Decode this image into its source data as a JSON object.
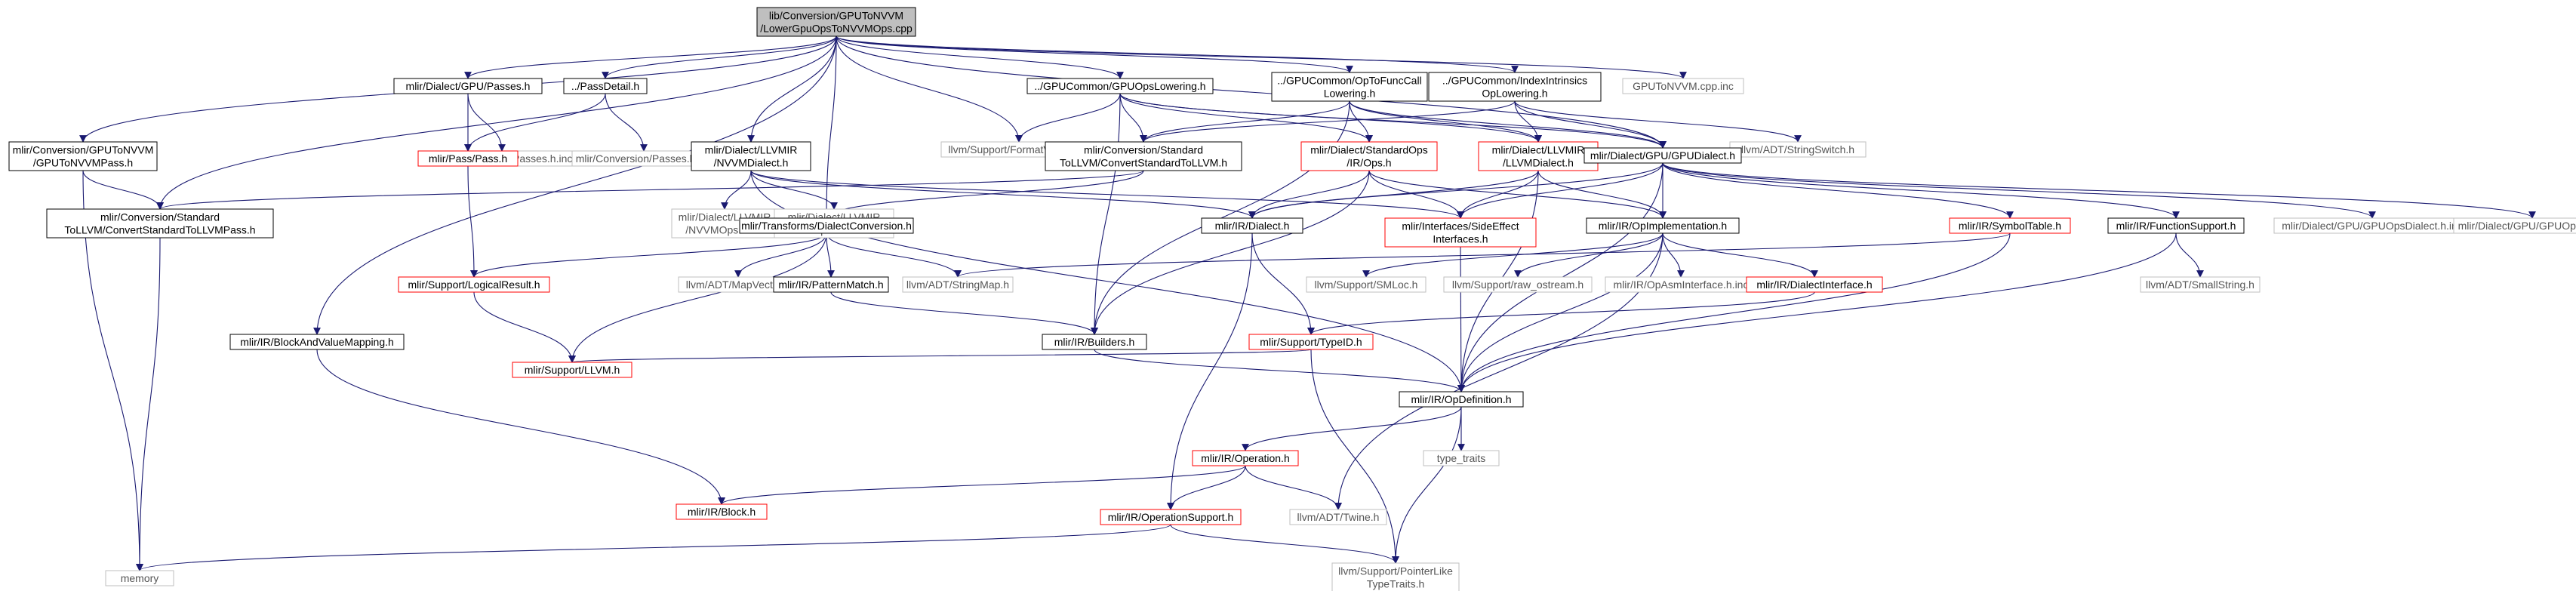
{
  "nodes": [
    {
      "id": "root",
      "lines": [
        "lib/Conversion/GPUToNVVM",
        "/LowerGpuOpsToNVVMOps.cpp"
      ],
      "style": "root"
    },
    {
      "id": "gpuToNvvmPass",
      "lines": [
        "mlir/Conversion/GPUToNVVM",
        "/GPUToNVVMPass.h"
      ],
      "style": "black"
    },
    {
      "id": "convStdToLLVMPass",
      "lines": [
        "mlir/Conversion/Standard",
        "ToLLVM/ConvertStandardToLLVMPass.h"
      ],
      "style": "black"
    },
    {
      "id": "memory",
      "lines": [
        "memory"
      ],
      "style": "gray"
    },
    {
      "id": "gpuPasses",
      "lines": [
        "mlir/Dialect/GPU/Passes.h"
      ],
      "style": "black"
    },
    {
      "id": "gpuPassesInc",
      "lines": [
        "mlir/Dialect/GPU/Passes.h.inc"
      ],
      "style": "gray"
    },
    {
      "id": "passDetail",
      "lines": [
        "../PassDetail.h"
      ],
      "style": "black"
    },
    {
      "id": "passPass",
      "lines": [
        "mlir/Pass/Pass.h"
      ],
      "style": "red"
    },
    {
      "id": "convPassesInc",
      "lines": [
        "mlir/Conversion/Passes.h.inc"
      ],
      "style": "gray"
    },
    {
      "id": "nvvmDialect",
      "lines": [
        "mlir/Dialect/LLVMIR",
        "/NVVMDialect.h"
      ],
      "style": "black"
    },
    {
      "id": "nvvmOpsInc",
      "lines": [
        "mlir/Dialect/LLVMIR",
        "/NVVMOps.h.inc"
      ],
      "style": "gray"
    },
    {
      "id": "nvvmOpsDialectInc",
      "lines": [
        "mlir/Dialect/LLVMIR",
        "/NVVMOpsDialect.h.inc"
      ],
      "style": "gray"
    },
    {
      "id": "blockAndValueMapping",
      "lines": [
        "mlir/IR/BlockAndValueMapping.h"
      ],
      "style": "black"
    },
    {
      "id": "dialectConversion",
      "lines": [
        "mlir/Transforms/DialectConversion.h"
      ],
      "style": "black"
    },
    {
      "id": "logicalResult",
      "lines": [
        "mlir/Support/LogicalResult.h"
      ],
      "style": "red"
    },
    {
      "id": "mapVector",
      "lines": [
        "llvm/ADT/MapVector.h"
      ],
      "style": "gray"
    },
    {
      "id": "patternMatch",
      "lines": [
        "mlir/IR/PatternMatch.h"
      ],
      "style": "black"
    },
    {
      "id": "stringMap",
      "lines": [
        "llvm/ADT/StringMap.h"
      ],
      "style": "gray"
    },
    {
      "id": "supportLLVM",
      "lines": [
        "mlir/Support/LLVM.h"
      ],
      "style": "red"
    },
    {
      "id": "block",
      "lines": [
        "mlir/IR/Block.h"
      ],
      "style": "red"
    },
    {
      "id": "gpuOpsLowering",
      "lines": [
        "../GPUCommon/GPUOpsLowering.h"
      ],
      "style": "black"
    },
    {
      "id": "formatVariadic",
      "lines": [
        "llvm/Support/FormatVariadic.h"
      ],
      "style": "gray"
    },
    {
      "id": "convStdToLLVM",
      "lines": [
        "mlir/Conversion/Standard",
        "ToLLVM/ConvertStandardToLLVM.h"
      ],
      "style": "black"
    },
    {
      "id": "builders",
      "lines": [
        "mlir/IR/Builders.h"
      ],
      "style": "black"
    },
    {
      "id": "opToFuncCall",
      "lines": [
        "../GPUCommon/OpToFuncCall",
        "Lowering.h"
      ],
      "style": "black"
    },
    {
      "id": "stdOps",
      "lines": [
        "mlir/Dialect/StandardOps",
        "/IR/Ops.h"
      ],
      "style": "red"
    },
    {
      "id": "indexIntrinsics",
      "lines": [
        "../GPUCommon/IndexIntrinsics",
        "OpLowering.h"
      ],
      "style": "black"
    },
    {
      "id": "llvmDialect",
      "lines": [
        "mlir/Dialect/LLVMIR",
        "/LLVMDialect.h"
      ],
      "style": "red"
    },
    {
      "id": "gpuToNvvmInc",
      "lines": [
        "GPUToNVVM.cpp.inc"
      ],
      "style": "gray"
    },
    {
      "id": "stringSwitch",
      "lines": [
        "llvm/ADT/StringSwitch.h"
      ],
      "style": "gray"
    },
    {
      "id": "gpuDialect",
      "lines": [
        "mlir/Dialect/GPU/GPUDialect.h"
      ],
      "style": "black"
    },
    {
      "id": "irDialect",
      "lines": [
        "mlir/IR/Dialect.h"
      ],
      "style": "black"
    },
    {
      "id": "sideEffect",
      "lines": [
        "mlir/Interfaces/SideEffect",
        "Interfaces.h"
      ],
      "style": "red"
    },
    {
      "id": "opImplementation",
      "lines": [
        "mlir/IR/OpImplementation.h"
      ],
      "style": "black"
    },
    {
      "id": "symbolTable",
      "lines": [
        "mlir/IR/SymbolTable.h"
      ],
      "style": "red"
    },
    {
      "id": "functionSupport",
      "lines": [
        "mlir/IR/FunctionSupport.h"
      ],
      "style": "black"
    },
    {
      "id": "gpuOpsDialectInc",
      "lines": [
        "mlir/Dialect/GPU/GPUOpsDialect.h.inc"
      ],
      "style": "gray"
    },
    {
      "id": "gpuOpsInc",
      "lines": [
        "mlir/Dialect/GPU/GPUOps.h.inc"
      ],
      "style": "gray"
    },
    {
      "id": "smLoc",
      "lines": [
        "llvm/Support/SMLoc.h"
      ],
      "style": "gray"
    },
    {
      "id": "rawOstream",
      "lines": [
        "llvm/Support/raw_ostream.h"
      ],
      "style": "gray"
    },
    {
      "id": "opAsmInterfaceInc",
      "lines": [
        "mlir/IR/OpAsmInterface.h.inc"
      ],
      "style": "gray"
    },
    {
      "id": "dialectInterface",
      "lines": [
        "mlir/IR/DialectInterface.h"
      ],
      "style": "red"
    },
    {
      "id": "smallString",
      "lines": [
        "llvm/ADT/SmallString.h"
      ],
      "style": "gray"
    },
    {
      "id": "typeID",
      "lines": [
        "mlir/Support/TypeID.h"
      ],
      "style": "red"
    },
    {
      "id": "opDefinition",
      "lines": [
        "mlir/IR/OpDefinition.h"
      ],
      "style": "black"
    },
    {
      "id": "operation",
      "lines": [
        "mlir/IR/Operation.h"
      ],
      "style": "red"
    },
    {
      "id": "typeTraits",
      "lines": [
        "type_traits"
      ],
      "style": "gray"
    },
    {
      "id": "operationSupport",
      "lines": [
        "mlir/IR/OperationSupport.h"
      ],
      "style": "red"
    },
    {
      "id": "twine",
      "lines": [
        "llvm/ADT/Twine.h"
      ],
      "style": "gray"
    },
    {
      "id": "pointerLikeTypeTraits",
      "lines": [
        "llvm/Support/PointerLike",
        "TypeTraits.h"
      ],
      "style": "gray"
    }
  ],
  "edges": [
    [
      "root",
      "gpuToNvvmPass"
    ],
    [
      "root",
      "convStdToLLVMPass"
    ],
    [
      "root",
      "gpuPasses"
    ],
    [
      "root",
      "passDetail"
    ],
    [
      "root",
      "nvvmDialect"
    ],
    [
      "root",
      "blockAndValueMapping"
    ],
    [
      "root",
      "dialectConversion"
    ],
    [
      "root",
      "formatVariadic"
    ],
    [
      "root",
      "gpuOpsLowering"
    ],
    [
      "root",
      "opToFuncCall"
    ],
    [
      "root",
      "indexIntrinsics"
    ],
    [
      "root",
      "gpuToNvvmInc"
    ],
    [
      "root",
      "gpuDialect"
    ],
    [
      "gpuToNvvmPass",
      "convStdToLLVMPass"
    ],
    [
      "gpuToNvvmPass",
      "memory"
    ],
    [
      "convStdToLLVMPass",
      "memory"
    ],
    [
      "gpuPasses",
      "gpuPassesInc"
    ],
    [
      "gpuPasses",
      "passPass"
    ],
    [
      "passDetail",
      "passPass"
    ],
    [
      "passDetail",
      "convPassesInc"
    ],
    [
      "passPass",
      "logicalResult"
    ],
    [
      "logicalResult",
      "supportLLVM"
    ],
    [
      "nvvmDialect",
      "nvvmOpsInc"
    ],
    [
      "nvvmDialect",
      "nvvmOpsDialectInc"
    ],
    [
      "nvvmDialect",
      "irDialect"
    ],
    [
      "nvvmDialect",
      "opDefinition"
    ],
    [
      "nvvmDialect",
      "sideEffect"
    ],
    [
      "blockAndValueMapping",
      "block"
    ],
    [
      "dialectConversion",
      "logicalResult"
    ],
    [
      "dialectConversion",
      "mapVector"
    ],
    [
      "dialectConversion",
      "patternMatch"
    ],
    [
      "dialectConversion",
      "stringMap"
    ],
    [
      "dialectConversion",
      "supportLLVM"
    ],
    [
      "patternMatch",
      "builders"
    ],
    [
      "gpuOpsLowering",
      "formatVariadic"
    ],
    [
      "gpuOpsLowering",
      "convStdToLLVM"
    ],
    [
      "gpuOpsLowering",
      "builders"
    ],
    [
      "gpuOpsLowering",
      "stdOps"
    ],
    [
      "gpuOpsLowering",
      "llvmDialect"
    ],
    [
      "gpuOpsLowering",
      "gpuDialect"
    ],
    [
      "convStdToLLVM",
      "convStdToLLVMPass"
    ],
    [
      "convStdToLLVM",
      "dialectConversion"
    ],
    [
      "opToFuncCall",
      "convStdToLLVM"
    ],
    [
      "opToFuncCall",
      "stdOps"
    ],
    [
      "opToFuncCall",
      "llvmDialect"
    ],
    [
      "opToFuncCall",
      "gpuDialect"
    ],
    [
      "opToFuncCall",
      "builders"
    ],
    [
      "indexIntrinsics",
      "convStdToLLVM"
    ],
    [
      "indexIntrinsics",
      "llvmDialect"
    ],
    [
      "indexIntrinsics",
      "gpuDialect"
    ],
    [
      "indexIntrinsics",
      "stringSwitch"
    ],
    [
      "stdOps",
      "builders"
    ],
    [
      "stdOps",
      "irDialect"
    ],
    [
      "stdOps",
      "sideEffect"
    ],
    [
      "stdOps",
      "opImplementation"
    ],
    [
      "llvmDialect",
      "irDialect"
    ],
    [
      "llvmDialect",
      "sideEffect"
    ],
    [
      "llvmDialect",
      "opImplementation"
    ],
    [
      "llvmDialect",
      "opDefinition"
    ],
    [
      "gpuDialect",
      "irDialect"
    ],
    [
      "gpuDialect",
      "sideEffect"
    ],
    [
      "gpuDialect",
      "opImplementation"
    ],
    [
      "gpuDialect",
      "symbolTable"
    ],
    [
      "gpuDialect",
      "functionSupport"
    ],
    [
      "gpuDialect",
      "gpuOpsDialectInc"
    ],
    [
      "gpuDialect",
      "gpuOpsInc"
    ],
    [
      "gpuDialect",
      "opDefinition"
    ],
    [
      "irDialect",
      "typeID"
    ],
    [
      "irDialect",
      "operationSupport"
    ],
    [
      "sideEffect",
      "opDefinition"
    ],
    [
      "opImplementation",
      "smLoc"
    ],
    [
      "opImplementation",
      "rawOstream"
    ],
    [
      "opImplementation",
      "opAsmInterfaceInc"
    ],
    [
      "opImplementation",
      "dialectInterface"
    ],
    [
      "opImplementation",
      "opDefinition"
    ],
    [
      "opImplementation",
      "twine"
    ],
    [
      "symbolTable",
      "stringMap"
    ],
    [
      "symbolTable",
      "opDefinition"
    ],
    [
      "functionSupport",
      "smallString"
    ],
    [
      "functionSupport",
      "opDefinition"
    ],
    [
      "dialectInterface",
      "typeID"
    ],
    [
      "typeID",
      "supportLLVM"
    ],
    [
      "typeID",
      "pointerLikeTypeTraits"
    ],
    [
      "builders",
      "opDefinition"
    ],
    [
      "opDefinition",
      "operation"
    ],
    [
      "opDefinition",
      "typeTraits"
    ],
    [
      "opDefinition",
      "pointerLikeTypeTraits"
    ],
    [
      "operation",
      "block"
    ],
    [
      "operation",
      "operationSupport"
    ],
    [
      "operation",
      "twine"
    ],
    [
      "operationSupport",
      "memory"
    ],
    [
      "operationSupport",
      "pointerLikeTypeTraits"
    ]
  ],
  "colors": {
    "edge": "#191970",
    "edge_neutral": "#555555",
    "border_black": "#000000",
    "border_red": "#ff0000",
    "border_gray": "#bfbfbf",
    "root_fill": "#bfbfbf",
    "text": "#000000",
    "text_gray": "#555555"
  }
}
